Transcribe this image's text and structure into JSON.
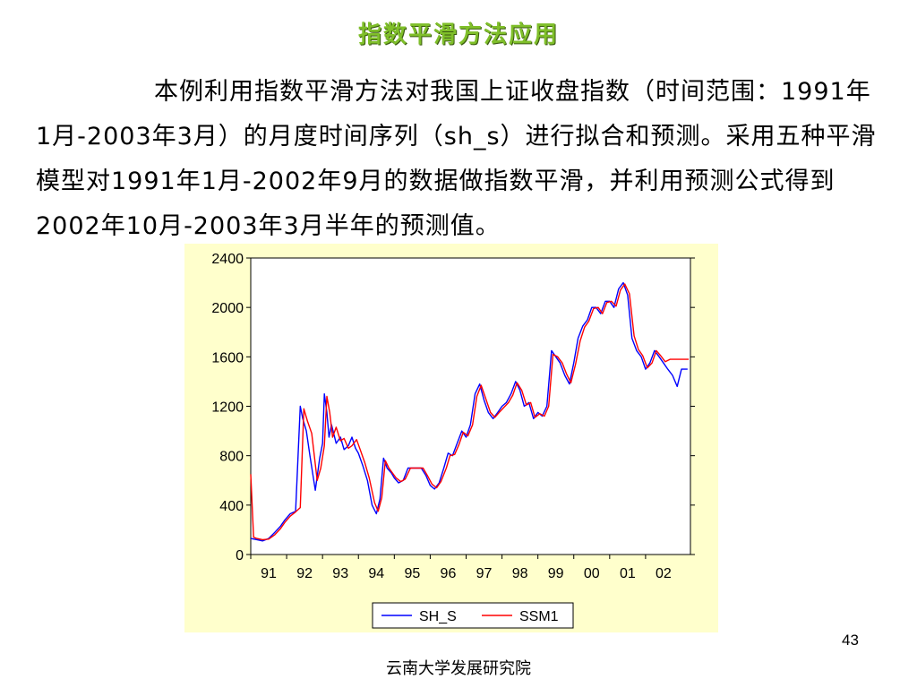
{
  "slide": {
    "title": "指数平滑方法应用",
    "paragraph": "本例利用指数平滑方法对我国上证收盘指数（时间范围：1991年1月-2003年3月）的月度时间序列（sh_s）进行拟合和预测。采用五种平滑模型对1991年1月-2002年9月的数据做指数平滑，并利用预测公式得到2002年10月-2003年3月半年的预测值。",
    "page_number": "43",
    "footer": "云南大学发展研究院"
  },
  "colors": {
    "title": "#7fbf2a",
    "panel_bg": "#ffffcc",
    "sh_s": "#0000ff",
    "ssm1": "#ff0000"
  },
  "chart_data": {
    "type": "line",
    "title": "",
    "xlabel": "",
    "ylabel": "",
    "x_start": 1991,
    "x_tick_labels": [
      "91",
      "92",
      "93",
      "94",
      "95",
      "96",
      "97",
      "98",
      "99",
      "00",
      "01",
      "02"
    ],
    "y_ticks": [
      0,
      400,
      800,
      1200,
      1600,
      2000,
      2400
    ],
    "ylim": [
      0,
      2400
    ],
    "grid": false,
    "legend_position": "bottom",
    "series": [
      {
        "name": "SH_S",
        "color": "#0000ff",
        "points": [
          [
            1991.0,
            130
          ],
          [
            1991.17,
            120
          ],
          [
            1991.33,
            110
          ],
          [
            1991.5,
            130
          ],
          [
            1991.67,
            180
          ],
          [
            1991.83,
            230
          ],
          [
            1991.95,
            280
          ],
          [
            1992.1,
            330
          ],
          [
            1992.25,
            350
          ],
          [
            1992.38,
            1200
          ],
          [
            1992.45,
            1100
          ],
          [
            1992.55,
            1000
          ],
          [
            1992.65,
            800
          ],
          [
            1992.8,
            520
          ],
          [
            1992.92,
            780
          ],
          [
            1993.0,
            900
          ],
          [
            1993.05,
            1300
          ],
          [
            1993.12,
            1150
          ],
          [
            1993.18,
            950
          ],
          [
            1993.25,
            1050
          ],
          [
            1993.38,
            900
          ],
          [
            1993.5,
            950
          ],
          [
            1993.6,
            850
          ],
          [
            1993.72,
            880
          ],
          [
            1993.82,
            950
          ],
          [
            1993.92,
            860
          ],
          [
            1994.0,
            820
          ],
          [
            1994.12,
            720
          ],
          [
            1994.25,
            600
          ],
          [
            1994.38,
            400
          ],
          [
            1994.5,
            330
          ],
          [
            1994.6,
            450
          ],
          [
            1994.7,
            780
          ],
          [
            1994.8,
            700
          ],
          [
            1994.92,
            660
          ],
          [
            1995.0,
            620
          ],
          [
            1995.12,
            580
          ],
          [
            1995.25,
            600
          ],
          [
            1995.38,
            700
          ],
          [
            1995.5,
            700
          ],
          [
            1995.62,
            700
          ],
          [
            1995.75,
            700
          ],
          [
            1995.88,
            640
          ],
          [
            1996.0,
            560
          ],
          [
            1996.12,
            530
          ],
          [
            1996.25,
            580
          ],
          [
            1996.38,
            700
          ],
          [
            1996.5,
            820
          ],
          [
            1996.62,
            800
          ],
          [
            1996.75,
            900
          ],
          [
            1996.88,
            1000
          ],
          [
            1997.0,
            950
          ],
          [
            1997.12,
            1050
          ],
          [
            1997.25,
            1300
          ],
          [
            1997.38,
            1380
          ],
          [
            1997.5,
            1250
          ],
          [
            1997.62,
            1150
          ],
          [
            1997.75,
            1100
          ],
          [
            1997.88,
            1150
          ],
          [
            1998.0,
            1200
          ],
          [
            1998.12,
            1230
          ],
          [
            1998.25,
            1300
          ],
          [
            1998.38,
            1400
          ],
          [
            1998.5,
            1330
          ],
          [
            1998.62,
            1200
          ],
          [
            1998.75,
            1230
          ],
          [
            1998.88,
            1100
          ],
          [
            1999.0,
            1150
          ],
          [
            1999.12,
            1120
          ],
          [
            1999.25,
            1200
          ],
          [
            1999.38,
            1650
          ],
          [
            1999.5,
            1600
          ],
          [
            1999.62,
            1550
          ],
          [
            1999.75,
            1450
          ],
          [
            1999.88,
            1380
          ],
          [
            2000.0,
            1550
          ],
          [
            2000.12,
            1750
          ],
          [
            2000.25,
            1850
          ],
          [
            2000.38,
            1900
          ],
          [
            2000.5,
            2000
          ],
          [
            2000.62,
            2000
          ],
          [
            2000.75,
            1950
          ],
          [
            2000.88,
            2050
          ],
          [
            2001.0,
            2050
          ],
          [
            2001.12,
            2000
          ],
          [
            2001.25,
            2150
          ],
          [
            2001.38,
            2200
          ],
          [
            2001.5,
            2100
          ],
          [
            2001.62,
            1750
          ],
          [
            2001.75,
            1650
          ],
          [
            2001.88,
            1600
          ],
          [
            2002.0,
            1500
          ],
          [
            2002.12,
            1550
          ],
          [
            2002.25,
            1650
          ],
          [
            2002.38,
            1600
          ],
          [
            2002.5,
            1550
          ],
          [
            2002.62,
            1500
          ],
          [
            2002.75,
            1450
          ],
          [
            2002.88,
            1360
          ],
          [
            2003.0,
            1500
          ],
          [
            2003.17,
            1500
          ]
        ]
      },
      {
        "name": "SSM1",
        "color": "#ff0000",
        "points": [
          [
            1991.0,
            650
          ],
          [
            1991.08,
            140
          ],
          [
            1991.17,
            130
          ],
          [
            1991.33,
            120
          ],
          [
            1991.5,
            125
          ],
          [
            1991.67,
            160
          ],
          [
            1991.83,
            210
          ],
          [
            1991.95,
            260
          ],
          [
            1992.1,
            310
          ],
          [
            1992.25,
            345
          ],
          [
            1992.38,
            380
          ],
          [
            1992.48,
            1180
          ],
          [
            1992.58,
            1080
          ],
          [
            1992.7,
            980
          ],
          [
            1992.85,
            600
          ],
          [
            1992.95,
            700
          ],
          [
            1993.05,
            880
          ],
          [
            1993.12,
            1280
          ],
          [
            1993.2,
            1150
          ],
          [
            1993.28,
            950
          ],
          [
            1993.38,
            1030
          ],
          [
            1993.5,
            920
          ],
          [
            1993.6,
            940
          ],
          [
            1993.72,
            860
          ],
          [
            1993.82,
            880
          ],
          [
            1993.95,
            930
          ],
          [
            1994.05,
            850
          ],
          [
            1994.18,
            740
          ],
          [
            1994.3,
            620
          ],
          [
            1994.45,
            420
          ],
          [
            1994.55,
            350
          ],
          [
            1994.65,
            460
          ],
          [
            1994.75,
            760
          ],
          [
            1994.85,
            700
          ],
          [
            1994.95,
            660
          ],
          [
            1995.05,
            620
          ],
          [
            1995.18,
            590
          ],
          [
            1995.3,
            610
          ],
          [
            1995.45,
            700
          ],
          [
            1995.55,
            700
          ],
          [
            1995.68,
            700
          ],
          [
            1995.8,
            700
          ],
          [
            1995.92,
            640
          ],
          [
            1996.05,
            570
          ],
          [
            1996.18,
            540
          ],
          [
            1996.3,
            590
          ],
          [
            1996.45,
            700
          ],
          [
            1996.55,
            800
          ],
          [
            1996.68,
            810
          ],
          [
            1996.8,
            890
          ],
          [
            1996.92,
            990
          ],
          [
            1997.05,
            960
          ],
          [
            1997.18,
            1050
          ],
          [
            1997.3,
            1280
          ],
          [
            1997.42,
            1370
          ],
          [
            1997.55,
            1260
          ],
          [
            1997.68,
            1150
          ],
          [
            1997.8,
            1110
          ],
          [
            1997.92,
            1150
          ],
          [
            1998.05,
            1190
          ],
          [
            1998.18,
            1230
          ],
          [
            1998.3,
            1290
          ],
          [
            1998.42,
            1390
          ],
          [
            1998.55,
            1330
          ],
          [
            1998.68,
            1210
          ],
          [
            1998.8,
            1230
          ],
          [
            1998.92,
            1110
          ],
          [
            1999.05,
            1140
          ],
          [
            1999.18,
            1120
          ],
          [
            1999.3,
            1200
          ],
          [
            1999.42,
            1620
          ],
          [
            1999.55,
            1600
          ],
          [
            1999.68,
            1550
          ],
          [
            1999.8,
            1460
          ],
          [
            1999.92,
            1390
          ],
          [
            2000.05,
            1540
          ],
          [
            2000.18,
            1730
          ],
          [
            2000.3,
            1840
          ],
          [
            2000.42,
            1890
          ],
          [
            2000.55,
            1990
          ],
          [
            2000.68,
            2000
          ],
          [
            2000.8,
            1950
          ],
          [
            2000.92,
            2040
          ],
          [
            2001.05,
            2050
          ],
          [
            2001.18,
            2010
          ],
          [
            2001.3,
            2140
          ],
          [
            2001.42,
            2190
          ],
          [
            2001.55,
            2110
          ],
          [
            2001.68,
            1770
          ],
          [
            2001.8,
            1660
          ],
          [
            2001.92,
            1610
          ],
          [
            2002.05,
            1510
          ],
          [
            2002.18,
            1550
          ],
          [
            2002.3,
            1650
          ],
          [
            2002.42,
            1610
          ],
          [
            2002.55,
            1560
          ],
          [
            2002.68,
            1580
          ],
          [
            2002.8,
            1580
          ],
          [
            2002.95,
            1580
          ],
          [
            2003.1,
            1580
          ],
          [
            2003.2,
            1580
          ]
        ]
      }
    ]
  }
}
